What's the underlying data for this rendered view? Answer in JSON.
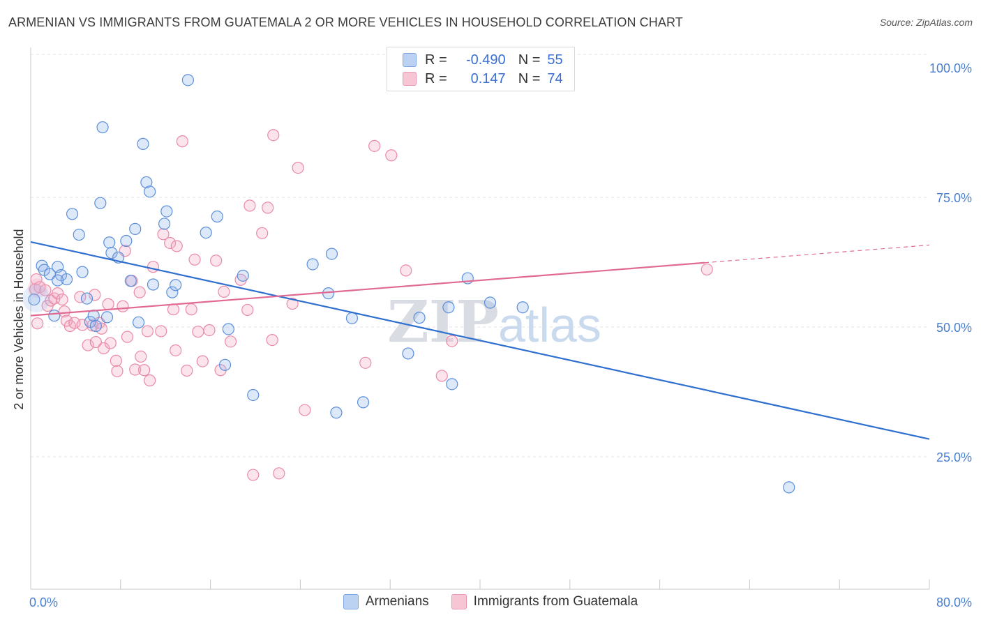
{
  "title": "ARMENIAN VS IMMIGRANTS FROM GUATEMALA 2 OR MORE VEHICLES IN HOUSEHOLD CORRELATION CHART",
  "source": "Source: ZipAtlas.com",
  "watermark": {
    "zip": "ZIP",
    "atlas": "atlas"
  },
  "legend": {
    "armenians": {
      "r_label": "R =",
      "r_value": "-0.490",
      "n_label": "N =",
      "n_value": "55"
    },
    "guatemala": {
      "r_label": "R =",
      "r_value": "0.147",
      "n_label": "N =",
      "n_value": "74"
    }
  },
  "bottom_legend": {
    "armenians": "Armenians",
    "guatemala": "Immigrants from Guatemala"
  },
  "chart_data": {
    "type": "scatter",
    "xlabel": "",
    "ylabel": "2 or more Vehicles in Household",
    "xlim": [
      0,
      80
    ],
    "ylim": [
      0,
      105
    ],
    "x_tick_labels": [
      "0.0%",
      "80.0%"
    ],
    "y_tick_labels": [
      "100.0%",
      "75.0%",
      "50.0%",
      "25.0%"
    ],
    "y_ticks": [
      100,
      75,
      50,
      25
    ],
    "colors": {
      "armenians": "#5b8fd9",
      "guatemala": "#e98aa6",
      "blue_line": "#2f6fd0",
      "pink_line": "#e06a94"
    },
    "series": [
      {
        "name": "Armenians",
        "trend": {
          "x0": 0,
          "y0": 66.4,
          "x1": 80,
          "y1": 28.4
        },
        "points": [
          [
            0.3,
            55.3
          ],
          [
            1.0,
            61.8
          ],
          [
            1.2,
            61.0
          ],
          [
            1.7,
            60.2
          ],
          [
            2.1,
            52.2
          ],
          [
            2.4,
            61.6
          ],
          [
            2.7,
            60.0
          ],
          [
            3.2,
            59.2
          ],
          [
            3.7,
            71.8
          ],
          [
            4.3,
            67.8
          ],
          [
            4.6,
            60.6
          ],
          [
            5.0,
            55.5
          ],
          [
            5.3,
            51.0
          ],
          [
            5.6,
            52.2
          ],
          [
            5.8,
            50.2
          ],
          [
            6.2,
            73.9
          ],
          [
            6.4,
            88.5
          ],
          [
            6.8,
            51.9
          ],
          [
            7.0,
            66.3
          ],
          [
            7.2,
            64.3
          ],
          [
            7.8,
            63.4
          ],
          [
            8.5,
            66.6
          ],
          [
            8.9,
            58.9
          ],
          [
            9.3,
            68.9
          ],
          [
            9.6,
            50.9
          ],
          [
            10.0,
            85.3
          ],
          [
            10.3,
            77.9
          ],
          [
            10.6,
            76.1
          ],
          [
            10.9,
            58.2
          ],
          [
            11.9,
            69.9
          ],
          [
            12.1,
            72.3
          ],
          [
            12.6,
            56.7
          ],
          [
            12.9,
            58.1
          ],
          [
            14.0,
            97.6
          ],
          [
            15.6,
            68.2
          ],
          [
            16.6,
            71.3
          ],
          [
            17.3,
            42.7
          ],
          [
            17.6,
            49.6
          ],
          [
            18.9,
            59.9
          ],
          [
            19.8,
            36.9
          ],
          [
            25.1,
            62.1
          ],
          [
            26.5,
            56.5
          ],
          [
            26.8,
            64.1
          ],
          [
            27.2,
            33.5
          ],
          [
            28.6,
            51.7
          ],
          [
            29.6,
            35.5
          ],
          [
            33.6,
            44.9
          ],
          [
            34.6,
            51.8
          ],
          [
            37.2,
            53.8
          ],
          [
            37.5,
            39.0
          ],
          [
            38.9,
            59.4
          ],
          [
            40.9,
            54.7
          ],
          [
            43.8,
            53.8
          ],
          [
            67.5,
            19.1
          ],
          [
            2.4,
            59.0
          ]
        ]
      },
      {
        "name": "Immigrants from Guatemala",
        "trend": {
          "x0": 0,
          "y0": 52.2,
          "x1": 60,
          "y1": 62.4,
          "x2": 80,
          "y2": 65.8
        },
        "points": [
          [
            0.4,
            57.3
          ],
          [
            0.5,
            59.2
          ],
          [
            0.6,
            50.7
          ],
          [
            0.8,
            57.7
          ],
          [
            1.3,
            57.1
          ],
          [
            1.5,
            54.1
          ],
          [
            1.8,
            55.1
          ],
          [
            2.1,
            55.5
          ],
          [
            2.4,
            56.5
          ],
          [
            2.8,
            55.3
          ],
          [
            3.0,
            53.0
          ],
          [
            3.2,
            51.2
          ],
          [
            3.5,
            50.2
          ],
          [
            3.9,
            50.8
          ],
          [
            4.4,
            55.8
          ],
          [
            4.6,
            50.4
          ],
          [
            5.1,
            46.5
          ],
          [
            5.5,
            50.3
          ],
          [
            5.7,
            56.2
          ],
          [
            5.8,
            47.1
          ],
          [
            6.1,
            50.8
          ],
          [
            6.3,
            49.7
          ],
          [
            6.5,
            45.9
          ],
          [
            6.9,
            54.4
          ],
          [
            7.1,
            46.9
          ],
          [
            7.6,
            43.5
          ],
          [
            7.7,
            41.5
          ],
          [
            8.2,
            54.0
          ],
          [
            8.4,
            64.7
          ],
          [
            8.6,
            48.1
          ],
          [
            9.0,
            58.9
          ],
          [
            9.3,
            41.8
          ],
          [
            9.7,
            56.7
          ],
          [
            9.8,
            44.3
          ],
          [
            10.1,
            41.7
          ],
          [
            10.4,
            49.2
          ],
          [
            10.6,
            39.7
          ],
          [
            10.9,
            61.6
          ],
          [
            11.6,
            49.2
          ],
          [
            11.8,
            67.9
          ],
          [
            12.4,
            66.2
          ],
          [
            12.7,
            53.4
          ],
          [
            12.9,
            45.5
          ],
          [
            13.0,
            65.6
          ],
          [
            13.5,
            85.8
          ],
          [
            13.9,
            41.6
          ],
          [
            14.3,
            53.4
          ],
          [
            14.6,
            63.0
          ],
          [
            14.9,
            49.1
          ],
          [
            15.3,
            43.4
          ],
          [
            15.9,
            49.4
          ],
          [
            16.5,
            62.8
          ],
          [
            16.9,
            41.7
          ],
          [
            17.2,
            56.8
          ],
          [
            17.8,
            47.2
          ],
          [
            18.7,
            59.1
          ],
          [
            19.3,
            53.3
          ],
          [
            19.5,
            73.4
          ],
          [
            19.8,
            21.5
          ],
          [
            20.6,
            68.1
          ],
          [
            21.1,
            73.0
          ],
          [
            21.5,
            47.5
          ],
          [
            21.6,
            87.0
          ],
          [
            22.1,
            21.8
          ],
          [
            23.3,
            54.5
          ],
          [
            23.8,
            80.7
          ],
          [
            24.4,
            34.0
          ],
          [
            29.8,
            43.1
          ],
          [
            30.6,
            84.9
          ],
          [
            32.1,
            83.1
          ],
          [
            33.4,
            60.9
          ],
          [
            36.6,
            40.6
          ],
          [
            37.5,
            47.3
          ],
          [
            60.2,
            61.1
          ]
        ]
      }
    ]
  }
}
